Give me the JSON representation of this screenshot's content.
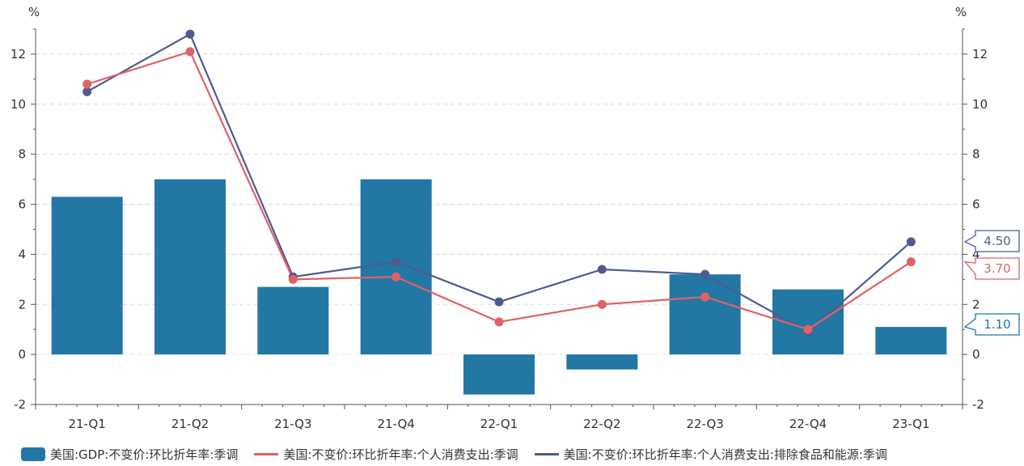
{
  "chart_data": {
    "type": "bar+line",
    "categories": [
      "21-Q1",
      "21-Q2",
      "21-Q3",
      "21-Q4",
      "22-Q1",
      "22-Q2",
      "22-Q3",
      "22-Q4",
      "23-Q1"
    ],
    "left_axis": {
      "unit": "%",
      "ylim": [
        -2,
        13
      ],
      "ticks": [
        -2,
        0,
        2,
        4,
        6,
        8,
        10,
        12
      ]
    },
    "right_axis": {
      "unit": "%",
      "ylim": [
        -2,
        13
      ],
      "ticks": [
        -2,
        0,
        2,
        4,
        6,
        8,
        10,
        12
      ]
    },
    "grid": "horizontal dashed",
    "legend_position": "bottom",
    "series": [
      {
        "name": "美国:GDP:不变价:环比折年率:季调",
        "kind": "bar",
        "color": "#2277a4",
        "values": [
          6.3,
          7.0,
          2.7,
          7.0,
          -1.6,
          -0.6,
          3.2,
          2.6,
          1.1
        ],
        "end_label": "1.10"
      },
      {
        "name": "美国:不变价:环比折年率:个人消费支出:季调",
        "kind": "line",
        "color": "#e06265",
        "values": [
          10.8,
          12.1,
          3.0,
          3.1,
          1.3,
          2.0,
          2.3,
          1.0,
          3.7
        ],
        "end_label": "3.70"
      },
      {
        "name": "美国:不变价:环比折年率:个人消费支出:排除食品和能源:季调",
        "kind": "line",
        "color": "#4e5a92",
        "values": [
          10.5,
          12.8,
          3.1,
          3.7,
          2.1,
          3.4,
          3.2,
          0.9,
          4.5
        ],
        "end_label": "4.50"
      }
    ]
  }
}
